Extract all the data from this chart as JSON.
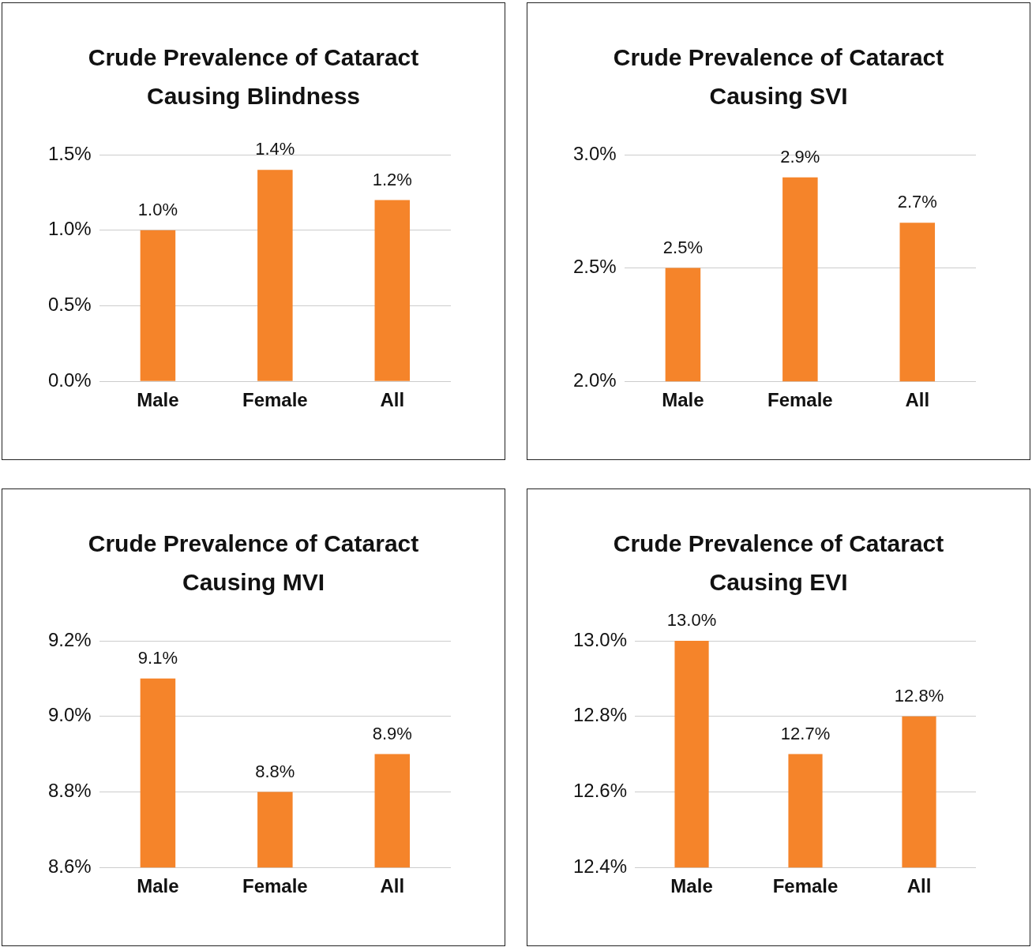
{
  "chart_data": [
    {
      "type": "bar",
      "title": "Crude Prevalence of Cataract Causing Blindness",
      "categories": [
        "Male",
        "Female",
        "All"
      ],
      "values": [
        1.0,
        1.4,
        1.2
      ],
      "color": "#f5842a",
      "ylim": [
        0,
        1.5
      ],
      "yticks": [
        {
          "value": 0,
          "label": "0.0%"
        },
        {
          "value": 0.5,
          "label": "0.5%"
        },
        {
          "value": 1.0,
          "label": "1.0%"
        },
        {
          "value": 1.5,
          "label": "1.5%"
        }
      ],
      "value_labels": [
        "1.0%",
        "1.4%",
        "1.2%"
      ],
      "grid": "y",
      "legend": false
    },
    {
      "type": "bar",
      "title": "Crude Prevalence of Cataract Causing SVI",
      "categories": [
        "Male",
        "Female",
        "All"
      ],
      "values": [
        2.5,
        2.9,
        2.7
      ],
      "color": "#f5842a",
      "ylim": [
        2.0,
        3.0
      ],
      "yticks": [
        {
          "value": 2.0,
          "label": "2.0%"
        },
        {
          "value": 2.5,
          "label": "2.5%"
        },
        {
          "value": 3.0,
          "label": "3.0%"
        }
      ],
      "value_labels": [
        "2.5%",
        "2.9%",
        "2.7%"
      ],
      "grid": "y",
      "legend": false
    },
    {
      "type": "bar",
      "title": "Crude Prevalence of Cataract Causing MVI",
      "categories": [
        "Male",
        "Female",
        "All"
      ],
      "values": [
        9.1,
        8.8,
        8.9
      ],
      "color": "#f5842a",
      "ylim": [
        8.6,
        9.2
      ],
      "yticks": [
        {
          "value": 8.6,
          "label": "8.6%"
        },
        {
          "value": 8.8,
          "label": "8.8%"
        },
        {
          "value": 9.0,
          "label": "9.0%"
        },
        {
          "value": 9.2,
          "label": "9.2%"
        }
      ],
      "value_labels": [
        "9.1%",
        "8.8%",
        "8.9%"
      ],
      "grid": "y",
      "legend": false
    },
    {
      "type": "bar",
      "title": "Crude Prevalence of Cataract Causing EVI",
      "categories": [
        "Male",
        "Female",
        "All"
      ],
      "values": [
        13.0,
        12.7,
        12.8
      ],
      "color": "#f5842a",
      "ylim": [
        12.4,
        13.0
      ],
      "yticks": [
        {
          "value": 12.4,
          "label": "12.4%"
        },
        {
          "value": 12.6,
          "label": "12.6%"
        },
        {
          "value": 12.8,
          "label": "12.8%"
        },
        {
          "value": 13.0,
          "label": "13.0%"
        }
      ],
      "value_labels": [
        "13.0%",
        "12.7%",
        "12.8%"
      ],
      "grid": "y",
      "legend": false
    }
  ]
}
